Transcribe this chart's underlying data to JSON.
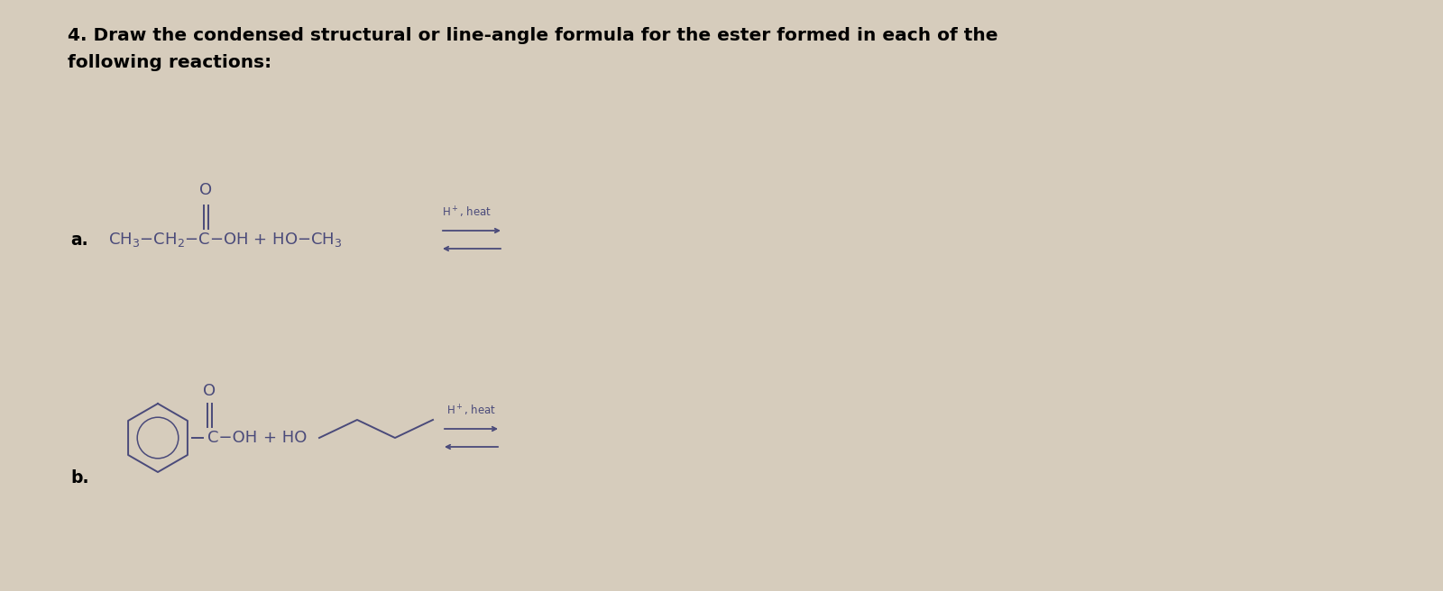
{
  "bg_color": "#d6ccbc",
  "text_color": "#000000",
  "chem_color": "#4a4a7a",
  "title_line1": "4. Draw the condensed structural or line-angle formula for the ester formed in each of the",
  "title_line2": "following reactions:",
  "title_fontsize": 14.5,
  "chem_fontsize": 13.0,
  "small_fontsize": 8.5,
  "label_fontsize": 13.5,
  "reaction_a_label": "a.",
  "reaction_b_label": "b.",
  "figw": 16.0,
  "figh": 6.56
}
